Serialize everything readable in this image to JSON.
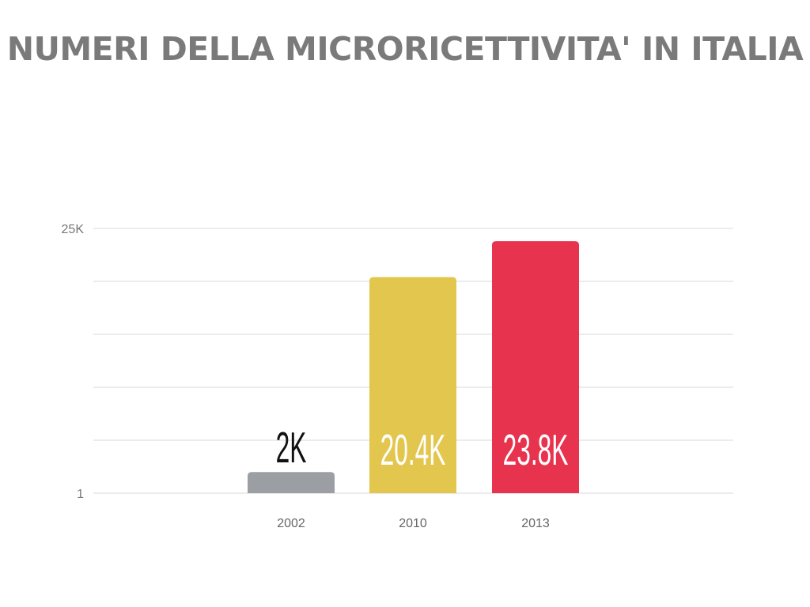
{
  "title": "NUMERI DELLA MICRORICETTIVITA' IN ITALIA",
  "colors": {
    "title": "#7a7a7a",
    "grid": "#d9d9d9",
    "bar_2002": "#9b9ea3",
    "bar_2010": "#e3c64e",
    "bar_2013": "#e8334f"
  },
  "chart_data": {
    "type": "bar",
    "categories": [
      "2002",
      "2010",
      "2013"
    ],
    "values": [
      2000,
      20400,
      23800
    ],
    "data_labels": [
      "2K",
      "20.4K",
      "23.8K"
    ],
    "bar_colors": [
      "#9b9ea3",
      "#e3c64e",
      "#e8334f"
    ],
    "data_label_colors": [
      "#111111",
      "#ffffff",
      "#ffffff"
    ],
    "ylim": [
      1,
      25000
    ],
    "y_tick_labels": [
      "1",
      "25K"
    ],
    "y_tick_values": [
      1,
      25000
    ],
    "gridlines": 5,
    "xlabel": "",
    "ylabel": "",
    "legend": "none"
  }
}
